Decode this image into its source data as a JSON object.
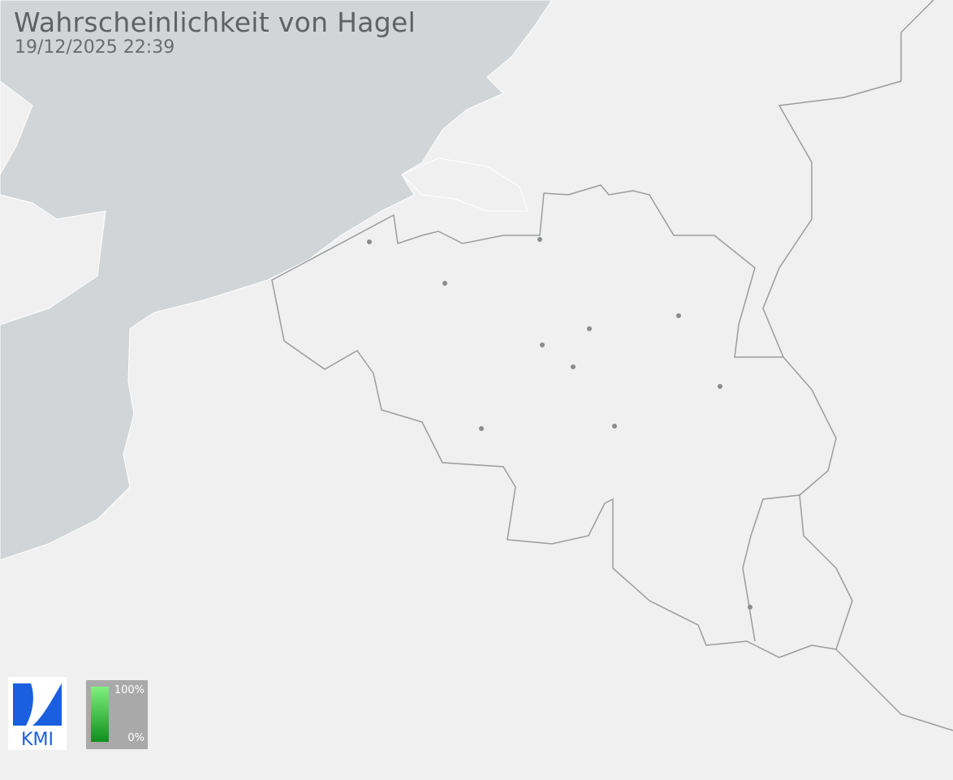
{
  "header": {
    "title": "Wahrscheinlichkeit von Hagel",
    "timestamp": "19/12/2025 22:39"
  },
  "legend": {
    "max_label": "100%",
    "min_label": "0%",
    "color_high": "#7ef27e",
    "color_low": "#0f8f1f"
  },
  "logo": {
    "text": "KMI",
    "color": "#1a5fe0"
  },
  "colors": {
    "sea": "#d2d5d7",
    "land": "#eff0ef",
    "border": "#9a9c9d",
    "city": "#8a8c8d"
  }
}
